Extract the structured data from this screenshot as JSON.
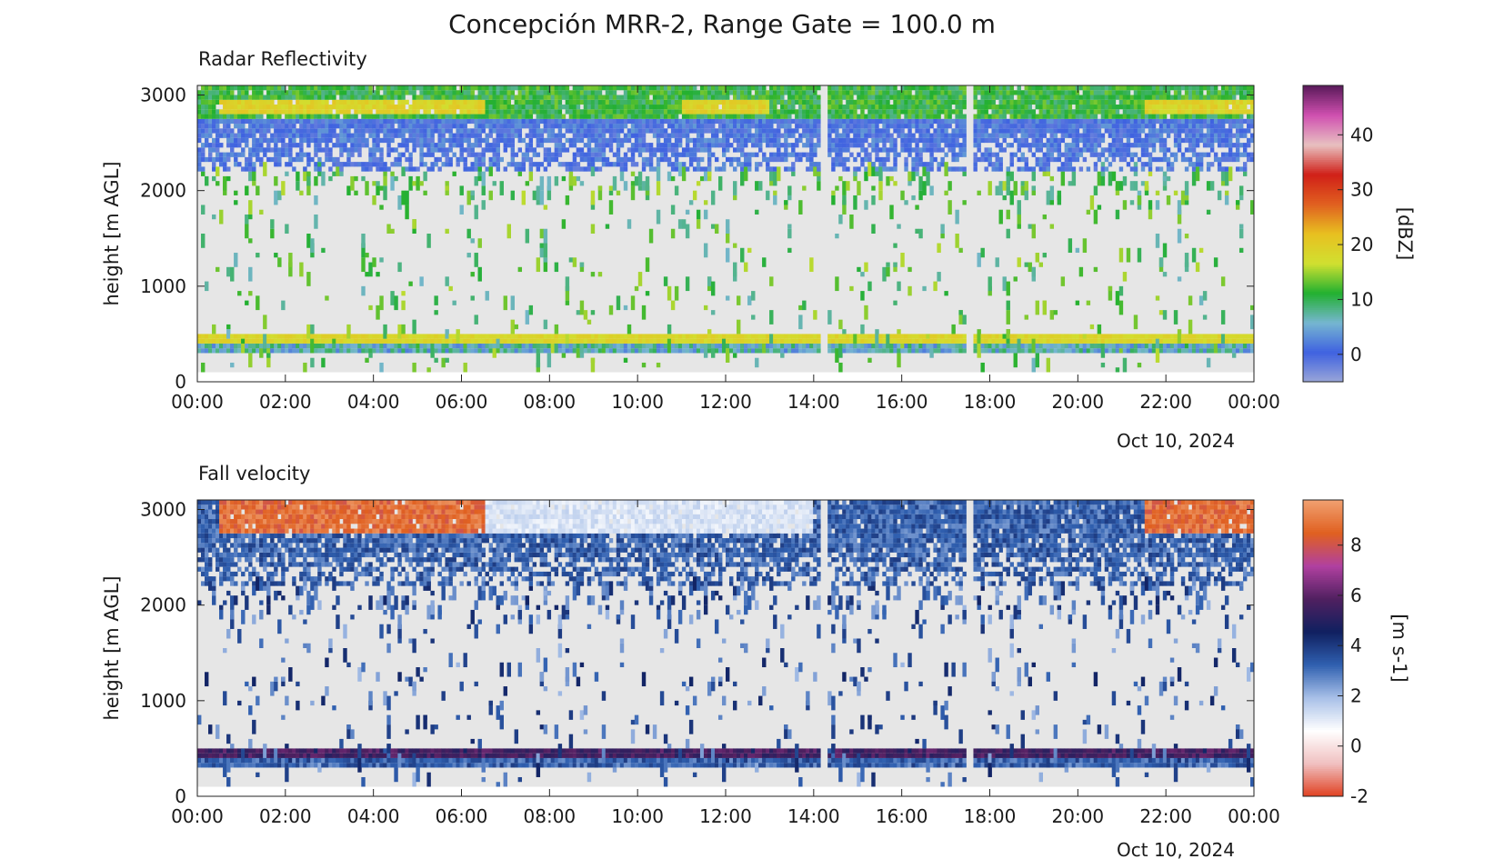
{
  "figure": {
    "title": "Concepción MRR-2, Range Gate = 100.0 m"
  },
  "chart_data": [
    {
      "type": "heatmap",
      "title": "Radar Reflectivity",
      "xlabel": "",
      "ylabel": "height [m AGL]",
      "date_label": "Oct 10, 2024",
      "x_ticks": [
        "00:00",
        "02:00",
        "04:00",
        "06:00",
        "08:00",
        "10:00",
        "12:00",
        "14:00",
        "16:00",
        "18:00",
        "20:00",
        "22:00",
        "00:00"
      ],
      "x_range_hours": [
        0,
        24
      ],
      "y_ticks": [
        "0",
        "1000",
        "2000",
        "3000"
      ],
      "y_range": [
        0,
        3100
      ],
      "colorbar": {
        "label": "[dBZ]",
        "ticks": [
          "0",
          "10",
          "20",
          "30",
          "40"
        ],
        "range": [
          -5,
          49
        ],
        "colors": [
          "#9aa6d8",
          "#3f62e0",
          "#76b6d0",
          "#22b030",
          "#d0e030",
          "#e8c020",
          "#e06020",
          "#d02018",
          "#e8c0c0",
          "#d050b0",
          "#5a1a5a"
        ]
      },
      "layers": [
        {
          "name": "ground clutter",
          "height_range_m": [
            300,
            500
          ],
          "dbz": [
            0,
            20
          ]
        },
        {
          "name": "sparse echoes",
          "height_range_m": [
            100,
            2200
          ],
          "dbz": [
            5,
            15
          ]
        },
        {
          "name": "upper band",
          "height_range_m": [
            2200,
            3100
          ],
          "dbz": [
            0,
            20
          ]
        }
      ],
      "gaps_hours": [
        14.25,
        17.55
      ]
    },
    {
      "type": "heatmap",
      "title": "Fall velocity",
      "xlabel": "",
      "ylabel": "height [m AGL]",
      "date_label": "Oct 10, 2024",
      "x_ticks": [
        "00:00",
        "02:00",
        "04:00",
        "06:00",
        "08:00",
        "10:00",
        "12:00",
        "14:00",
        "16:00",
        "18:00",
        "20:00",
        "22:00",
        "00:00"
      ],
      "x_range_hours": [
        0,
        24
      ],
      "y_ticks": [
        "0",
        "1000",
        "2000",
        "3000"
      ],
      "y_range": [
        0,
        3100
      ],
      "colorbar": {
        "label": "[m s-1]",
        "ticks": [
          "-2",
          "0",
          "2",
          "4",
          "6",
          "8"
        ],
        "range": [
          -2,
          9.8
        ],
        "colors": [
          "#e04020",
          "#f0c0c0",
          "#ffffff",
          "#a8c0e8",
          "#3060b0",
          "#102060",
          "#502060",
          "#b040a0",
          "#e06020",
          "#f0a070"
        ]
      },
      "layers": [
        {
          "name": "ground clutter",
          "height_range_m": [
            300,
            500
          ],
          "velocity_ms": [
            3,
            6
          ]
        },
        {
          "name": "sparse echoes",
          "height_range_m": [
            100,
            2200
          ],
          "velocity_ms": [
            2,
            4
          ]
        },
        {
          "name": "upper band",
          "height_range_m": [
            2200,
            3100
          ],
          "velocity_ms": [
            1,
            9
          ]
        }
      ],
      "gaps_hours": [
        14.25,
        17.55
      ]
    }
  ]
}
